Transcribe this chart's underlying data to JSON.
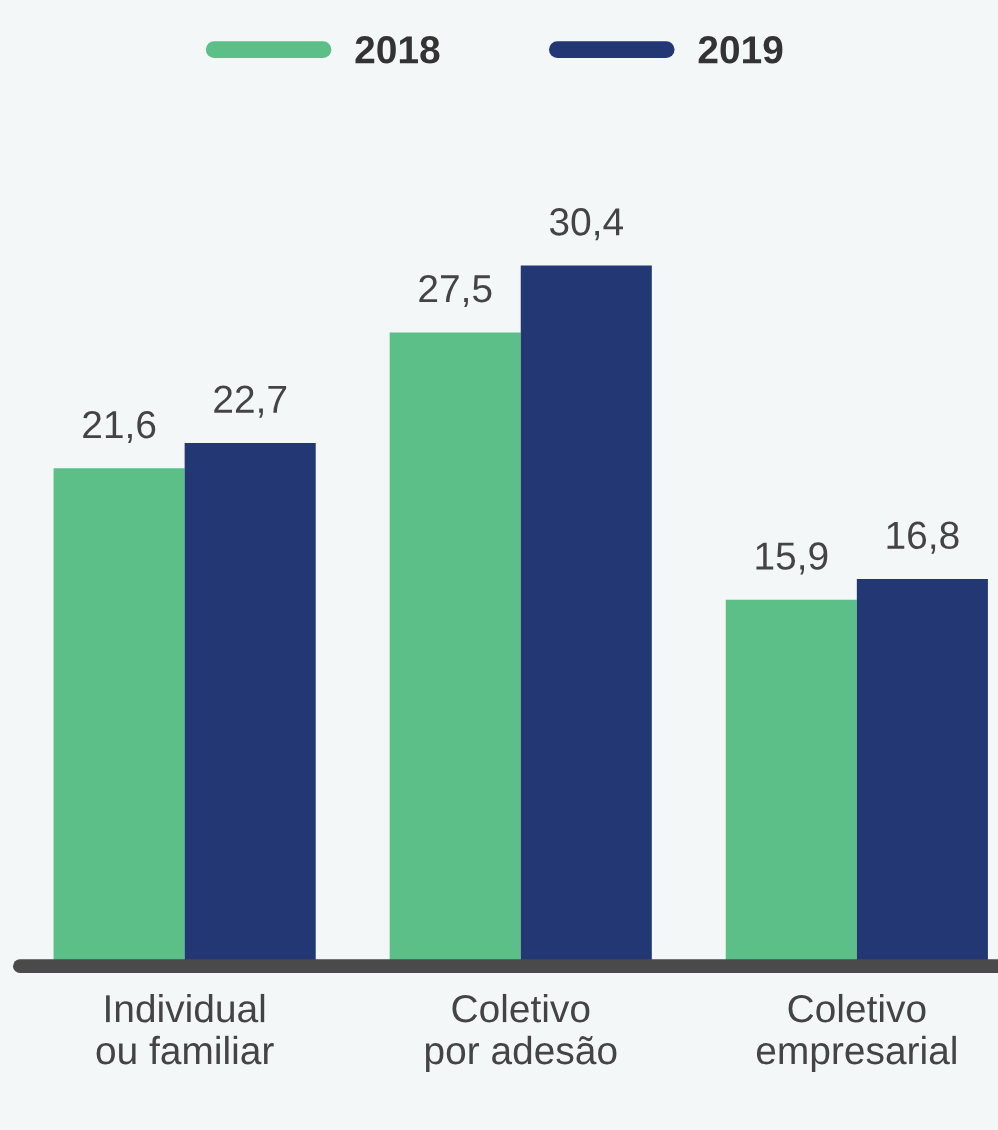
{
  "chart_data": {
    "type": "bar",
    "categories": [
      "Individual\nou familiar",
      "Coletivo\npor adesão",
      "Coletivo\nempresarial"
    ],
    "series": [
      {
        "name": "2018",
        "color": "#5bbf87",
        "values": [
          21.6,
          27.5,
          15.9
        ],
        "value_labels": [
          "21,6",
          "27,5",
          "15,9"
        ]
      },
      {
        "name": "2019",
        "color": "#233775",
        "values": [
          22.7,
          30.4,
          16.8
        ],
        "value_labels": [
          "22,7",
          "30,4",
          "16,8"
        ]
      }
    ],
    "legend": "top",
    "grid": false,
    "tick_labels": "x"
  }
}
